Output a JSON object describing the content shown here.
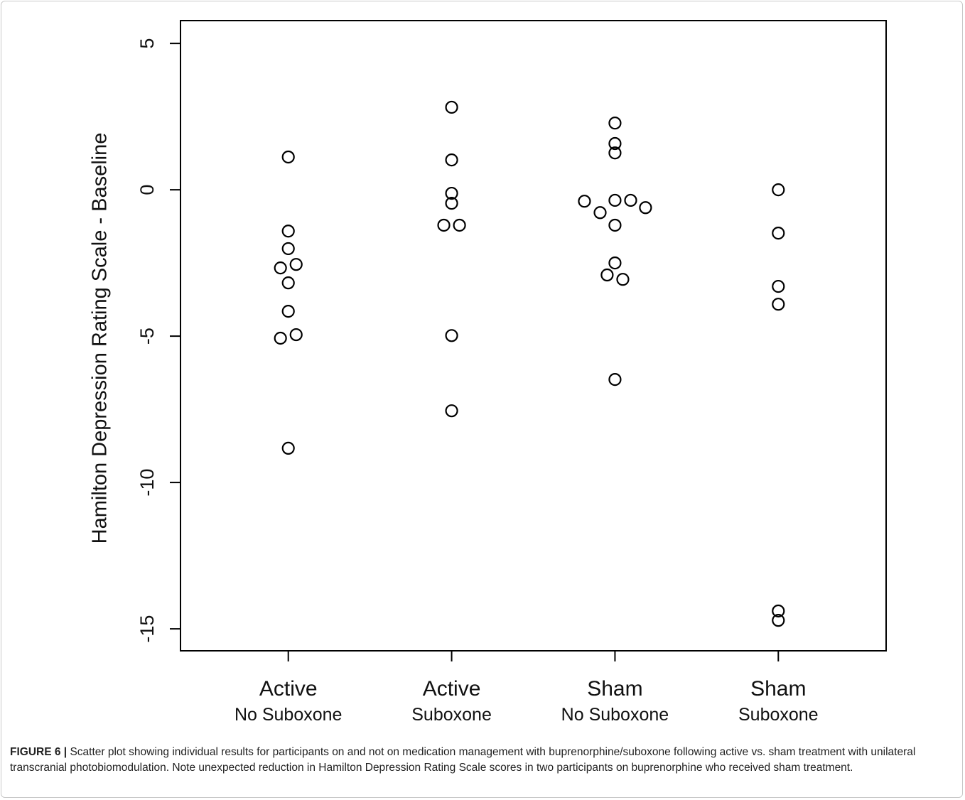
{
  "chart_data": {
    "type": "scatter",
    "ylabel": "Hamilton Depression Rating Scale - Baseline",
    "xticks": [
      {
        "value": 1,
        "label": [
          "Active",
          "No Suboxone"
        ]
      },
      {
        "value": 2,
        "label": [
          "Active",
          "Suboxone"
        ]
      },
      {
        "value": 3,
        "label": [
          "Sham",
          "No Suboxone"
        ]
      },
      {
        "value": 4,
        "label": [
          "Sham",
          "Suboxone"
        ]
      }
    ],
    "xlim": [
      0.34,
      4.66
    ],
    "ylim": [
      -15.75,
      5.78
    ],
    "yticks": [
      -15,
      -10,
      -5,
      0,
      5
    ],
    "color": "#000000",
    "series": [
      {
        "name": null,
        "x": [
          1,
          1,
          1,
          0.952,
          1.048,
          1,
          1,
          0.952,
          1.048,
          1,
          2,
          2,
          2,
          2,
          1.952,
          2.048,
          2,
          2,
          3,
          3,
          3,
          2.813,
          2.909,
          3,
          3.096,
          3.187,
          3,
          3,
          2.952,
          3.048,
          3,
          4,
          4,
          4,
          4,
          4,
          4
        ],
        "values": [
          1.12,
          -1.41,
          -2.01,
          -2.67,
          -2.55,
          -3.18,
          -4.15,
          -5.07,
          -4.95,
          -8.83,
          2.82,
          1.02,
          -0.12,
          -0.46,
          -1.21,
          -1.21,
          -4.98,
          -7.55,
          2.28,
          1.58,
          1.26,
          -0.39,
          -0.78,
          -0.36,
          -0.36,
          -0.61,
          -1.21,
          -2.5,
          -2.91,
          -3.06,
          -6.48,
          0,
          -1.48,
          -3.3,
          -3.91,
          -14.39,
          -14.71
        ]
      }
    ]
  },
  "caption": {
    "label": "FIGURE 6 |",
    "text": "Scatter plot showing individual results for participants on and not on medication management with buprenorphine/suboxone following active vs. sham treatment with unilateral transcranial photobiomodulation. Note unexpected reduction in Hamilton Depression Rating Scale scores in two participants on buprenorphine who received sham treatment."
  }
}
